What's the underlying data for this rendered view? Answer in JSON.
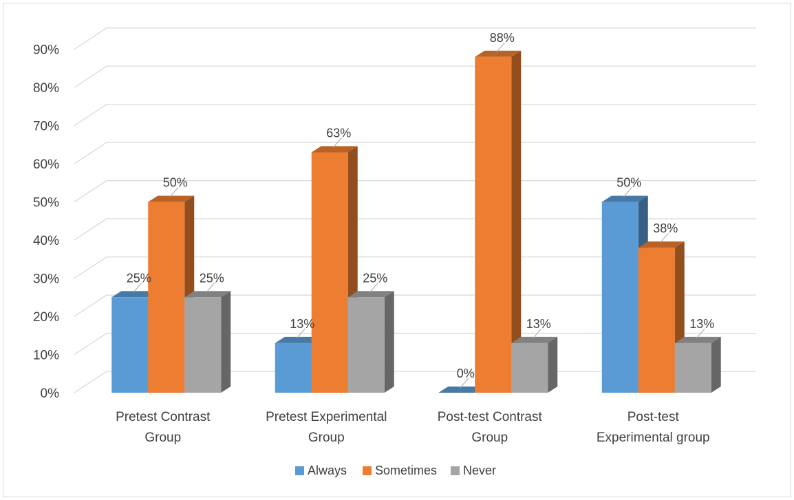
{
  "chart_data": {
    "type": "bar",
    "title": "",
    "xlabel": "",
    "ylabel": "",
    "categories": [
      [
        "Pretest Contrast",
        "Group"
      ],
      [
        "Pretest Experimental",
        "Group"
      ],
      [
        "Post-test Contrast",
        "Group"
      ],
      [
        "Post-test",
        "Experimental group"
      ]
    ],
    "series": [
      {
        "name": "Always",
        "values": [
          25,
          13,
          0,
          50
        ],
        "labels": [
          "25%",
          "13%",
          "0%",
          "50%"
        ],
        "color": "#5b9bd5"
      },
      {
        "name": "Sometimes",
        "values": [
          50,
          63,
          88,
          38
        ],
        "labels": [
          "50%",
          "63%",
          "88%",
          "38%"
        ],
        "color": "#ed7d31"
      },
      {
        "name": "Never",
        "values": [
          25,
          25,
          13,
          13
        ],
        "labels": [
          "25%",
          "25%",
          "13%",
          "13%"
        ],
        "color": "#a5a5a5"
      }
    ],
    "y_ticks": [
      "0%",
      "10%",
      "20%",
      "30%",
      "40%",
      "50%",
      "60%",
      "70%",
      "80%",
      "90%"
    ],
    "ylim": [
      0,
      90
    ],
    "grid": true,
    "style": "3d-clustered-column",
    "legend_position": "bottom"
  }
}
